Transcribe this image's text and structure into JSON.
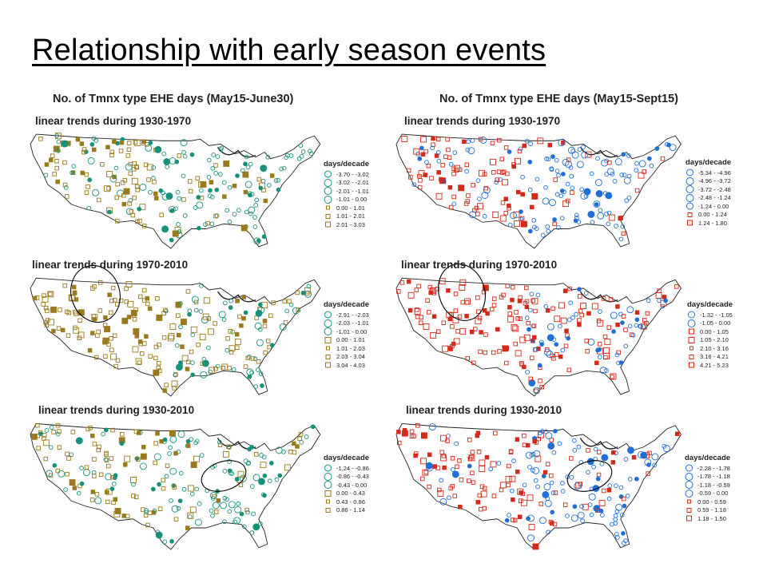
{
  "slide_title": "Relationship with early season events",
  "columns": [
    {
      "title": "No. of Tmnx type EHE days (May15-June30)"
    },
    {
      "title": "No. of Tmnx type EHE days (May15-Sept15)"
    }
  ],
  "legend_title": "days/decade",
  "panels": [
    {
      "label": "linear trends during 1930-1970",
      "colors": {
        "neg": "#17917a",
        "pos": "#9a7a1c"
      },
      "legend": [
        "-3.70 - -3.02",
        "-3.02 - -2.01",
        "-2.01 - -1.01",
        "-1.01 - 0.00",
        "0.00 - 1.01",
        "1.01 - 2.01",
        "2.01 - 3.03"
      ],
      "legend_signs": [
        "neg",
        "neg",
        "neg",
        "neg",
        "pos",
        "pos",
        "pos"
      ]
    },
    {
      "label": "linear trends during 1930-1970",
      "colors": {
        "neg": "#1f6fd6",
        "pos": "#d42a1a"
      },
      "legend": [
        "-5.34 - -4.96",
        "-4.96 - -3.72",
        "-3.72 - -2.48",
        "-2.48 - -1.24",
        "-1.24 - 0.00",
        "0.00 - 1.24",
        "1.24 - 1.80"
      ],
      "legend_signs": [
        "neg",
        "neg",
        "neg",
        "neg",
        "neg",
        "pos",
        "pos"
      ]
    },
    {
      "label": "linear trends during 1970-2010",
      "colors": {
        "neg": "#17917a",
        "pos": "#9a7a1c"
      },
      "legend": [
        "-2.91 - -2.03",
        "-2.03 - -1.01",
        "-1.01 - 0.00",
        "0.00 - 1.01",
        "1.01 - 2.03",
        "2.03 - 3.04",
        "3.04 - 4.03"
      ],
      "legend_signs": [
        "neg",
        "neg",
        "neg",
        "pos",
        "pos",
        "pos",
        "pos"
      ]
    },
    {
      "label": "linear trends during 1970-2010",
      "colors": {
        "neg": "#1f6fd6",
        "pos": "#d42a1a"
      },
      "legend": [
        "-1.32 - -1.05",
        "-1.05 - 0.00",
        "0.00 - 1.05",
        "1.05 - 2.10",
        "2.10 - 3.16",
        "3.16 - 4.21",
        "4.21 - 5.23"
      ],
      "legend_signs": [
        "neg",
        "neg",
        "pos",
        "pos",
        "pos",
        "pos",
        "pos"
      ]
    },
    {
      "label": "linear trends during 1930-2010",
      "colors": {
        "neg": "#17917a",
        "pos": "#9a7a1c"
      },
      "legend": [
        "-1.24 - -0.86",
        "-0.86 - -0.43",
        "-0.43 - 0.00",
        "0.00 - 0.43",
        "0.43 - 0.86",
        "0.86 - 1.14"
      ],
      "legend_signs": [
        "neg",
        "neg",
        "neg",
        "pos",
        "pos",
        "pos"
      ]
    },
    {
      "label": "linear trends during 1930-2010",
      "colors": {
        "neg": "#1f6fd6",
        "pos": "#d42a1a"
      },
      "legend": [
        "-2.28 - -1.78",
        "-1.78 - -1.18",
        "-1.18 - -0.59",
        "-0.59 - 0.00",
        "0.00 - 0.59",
        "0.59 - 1.18",
        "1.18 - 1.50"
      ],
      "legend_signs": [
        "neg",
        "neg",
        "neg",
        "neg",
        "pos",
        "pos",
        "pos"
      ]
    }
  ]
}
